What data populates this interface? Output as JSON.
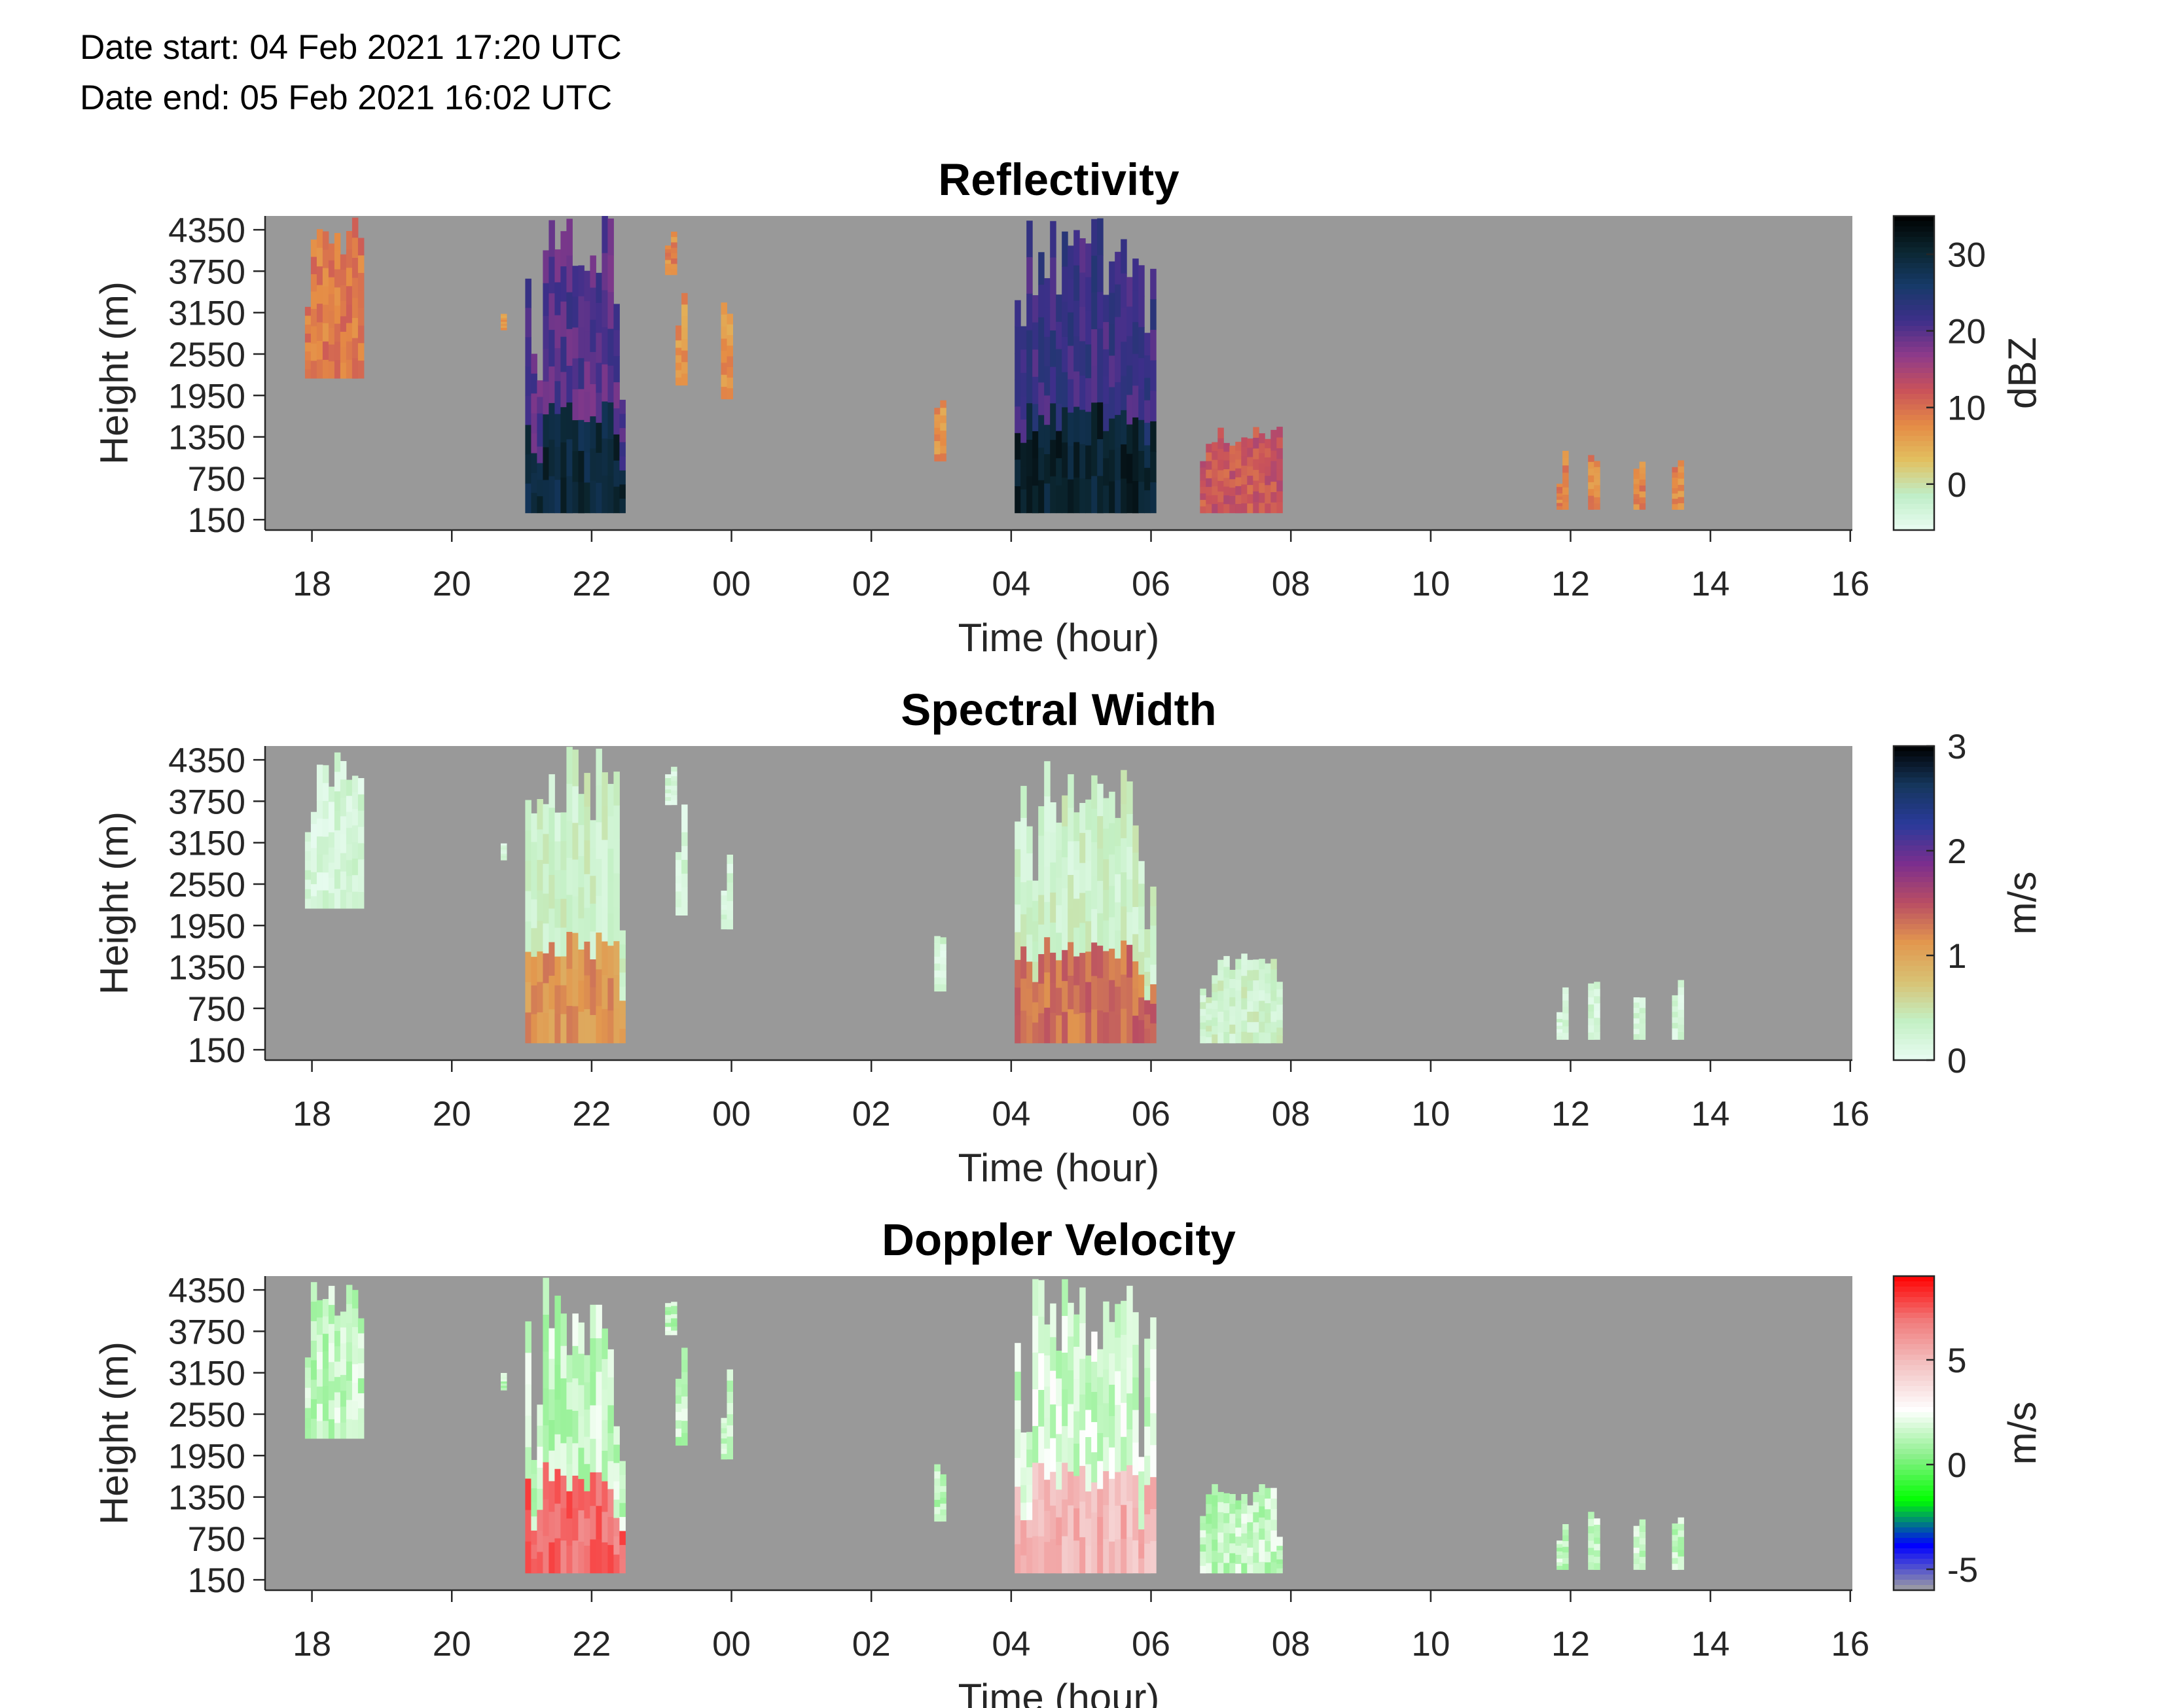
{
  "header": {
    "date_start": "Date start: 04 Feb 2021 17:20 UTC",
    "date_end": "Date end:  05 Feb 2021 16:02 UTC"
  },
  "colors": {
    "no_data": "#999999",
    "reflectivity_scale": [
      "#e9fcf2",
      "#bfeec7",
      "#e2c060",
      "#e58b45",
      "#c9525a",
      "#8e3a8a",
      "#3d2f8a",
      "#163a68",
      "#0b2630",
      "#000000"
    ],
    "width_scale": [
      "#e9fcf2",
      "#c3f0c4",
      "#d8c273",
      "#e2974e",
      "#b94d63",
      "#7b2e8e",
      "#2a3a9a",
      "#15365c",
      "#000000"
    ],
    "velocity_scale": [
      "#a0a0a0",
      "#0000ff",
      "#00ff00",
      "#8cf08c",
      "#ffffff",
      "#f3c4c4",
      "#f17b7b",
      "#ff0000"
    ]
  },
  "chart_data": [
    {
      "type": "heatmap",
      "title": "Reflectivity",
      "xlabel": "Time (hour)",
      "ylabel": "Height (m)",
      "xticks": [
        "18",
        "20",
        "22",
        "00",
        "02",
        "04",
        "06",
        "08",
        "10",
        "12",
        "14",
        "16"
      ],
      "yticks": [
        "4350",
        "3750",
        "3150",
        "2550",
        "1950",
        "1350",
        "750",
        "150"
      ],
      "xlim": [
        17.33,
        40.03
      ],
      "ylim": [
        0,
        4550
      ],
      "colorbar": {
        "label": "dBZ",
        "ticks": [
          "30",
          "20",
          "10",
          "0"
        ],
        "range": [
          -6,
          35
        ]
      },
      "echoes": [
        {
          "t": [
            17.9,
            18.7
          ],
          "h": [
            2200,
            4550
          ],
          "v": 9
        },
        {
          "t": [
            20.7,
            20.75
          ],
          "h": [
            2900,
            3150
          ],
          "v": 6
        },
        {
          "t": [
            21.05,
            22.45
          ],
          "h": [
            250,
            4550
          ],
          "v": 20,
          "core": 32
        },
        {
          "t": [
            23.05,
            23.2
          ],
          "h": [
            3700,
            4350
          ],
          "v": 8
        },
        {
          "t": [
            23.2,
            23.3
          ],
          "h": [
            2100,
            3800
          ],
          "v": 7
        },
        {
          "t": [
            23.85,
            23.95
          ],
          "h": [
            1900,
            3300
          ],
          "v": 7
        },
        {
          "t": [
            26.9,
            27.0
          ],
          "h": [
            1000,
            1900
          ],
          "v": 7
        },
        {
          "t": [
            28.05,
            30.05
          ],
          "h": [
            250,
            4550
          ],
          "v": 22,
          "core": 33
        },
        {
          "t": [
            30.7,
            31.8
          ],
          "h": [
            250,
            1550
          ],
          "v": 12
        },
        {
          "t": [
            35.8,
            35.9
          ],
          "h": [
            300,
            1150
          ],
          "v": 8
        },
        {
          "t": [
            36.25,
            36.35
          ],
          "h": [
            300,
            1150
          ],
          "v": 8
        },
        {
          "t": [
            36.9,
            37.05
          ],
          "h": [
            300,
            1050
          ],
          "v": 8
        },
        {
          "t": [
            37.45,
            37.55
          ],
          "h": [
            300,
            1250
          ],
          "v": 8
        }
      ]
    },
    {
      "type": "heatmap",
      "title": "Spectral Width",
      "xlabel": "Time (hour)",
      "ylabel": "Height (m)",
      "xticks": [
        "18",
        "20",
        "22",
        "00",
        "02",
        "04",
        "06",
        "08",
        "10",
        "12",
        "14",
        "16"
      ],
      "yticks": [
        "4350",
        "3750",
        "3150",
        "2550",
        "1950",
        "1350",
        "750",
        "150"
      ],
      "xlim": [
        17.33,
        40.03
      ],
      "ylim": [
        0,
        4550
      ],
      "colorbar": {
        "label": "m/s",
        "ticks": [
          "3",
          "2",
          "1",
          "0"
        ],
        "range": [
          0,
          3
        ]
      },
      "echoes": [
        {
          "t": [
            17.9,
            18.7
          ],
          "h": [
            2200,
            4550
          ],
          "v": 0.2
        },
        {
          "t": [
            20.7,
            20.75
          ],
          "h": [
            2900,
            3150
          ],
          "v": 0.2
        },
        {
          "t": [
            21.05,
            22.45
          ],
          "h": [
            250,
            4550
          ],
          "v": 0.3,
          "core": 1.3
        },
        {
          "t": [
            23.05,
            23.2
          ],
          "h": [
            3700,
            4350
          ],
          "v": 0.2
        },
        {
          "t": [
            23.2,
            23.3
          ],
          "h": [
            2100,
            3800
          ],
          "v": 0.2
        },
        {
          "t": [
            23.85,
            23.95
          ],
          "h": [
            1900,
            3300
          ],
          "v": 0.2
        },
        {
          "t": [
            26.9,
            27.0
          ],
          "h": [
            1000,
            1900
          ],
          "v": 0.2
        },
        {
          "t": [
            28.05,
            30.05
          ],
          "h": [
            250,
            4550
          ],
          "v": 0.3,
          "core": 1.5
        },
        {
          "t": [
            30.7,
            31.8
          ],
          "h": [
            250,
            1550
          ],
          "v": 0.3
        },
        {
          "t": [
            35.8,
            35.9
          ],
          "h": [
            300,
            1150
          ],
          "v": 0.2
        },
        {
          "t": [
            36.25,
            36.35
          ],
          "h": [
            300,
            1150
          ],
          "v": 0.2
        },
        {
          "t": [
            36.9,
            37.05
          ],
          "h": [
            300,
            1050
          ],
          "v": 0.2
        },
        {
          "t": [
            37.45,
            37.55
          ],
          "h": [
            300,
            1250
          ],
          "v": 0.2
        }
      ]
    },
    {
      "type": "heatmap",
      "title": "Doppler Velocity",
      "xlabel": "Time (hour)",
      "ylabel": "Height (m)",
      "xticks": [
        "18",
        "20",
        "22",
        "00",
        "02",
        "04",
        "06",
        "08",
        "10",
        "12",
        "14",
        "16"
      ],
      "yticks": [
        "4350",
        "3750",
        "3150",
        "2550",
        "1950",
        "1350",
        "750",
        "150"
      ],
      "xlim": [
        17.33,
        40.03
      ],
      "ylim": [
        0,
        4550
      ],
      "colorbar": {
        "label": "m/s",
        "ticks": [
          "5",
          "0",
          "-5"
        ],
        "range": [
          -6,
          9
        ]
      },
      "echoes": [
        {
          "t": [
            17.9,
            18.7
          ],
          "h": [
            2200,
            4550
          ],
          "v": 1.5
        },
        {
          "t": [
            20.7,
            20.75
          ],
          "h": [
            2900,
            3150
          ],
          "v": 1.5
        },
        {
          "t": [
            21.05,
            22.45
          ],
          "h": [
            250,
            4550
          ],
          "v": 1.5,
          "core": 8
        },
        {
          "t": [
            23.05,
            23.2
          ],
          "h": [
            3700,
            4350
          ],
          "v": 1.5
        },
        {
          "t": [
            23.2,
            23.3
          ],
          "h": [
            2100,
            3800
          ],
          "v": 1.5
        },
        {
          "t": [
            23.85,
            23.95
          ],
          "h": [
            1900,
            3300
          ],
          "v": 1.5
        },
        {
          "t": [
            26.9,
            27.0
          ],
          "h": [
            1000,
            1900
          ],
          "v": 1.5
        },
        {
          "t": [
            28.05,
            30.05
          ],
          "h": [
            250,
            4550
          ],
          "v": 1.8,
          "core": 6
        },
        {
          "t": [
            30.7,
            31.8
          ],
          "h": [
            250,
            1550
          ],
          "v": 1.5
        },
        {
          "t": [
            35.8,
            35.9
          ],
          "h": [
            300,
            1150
          ],
          "v": 1.5
        },
        {
          "t": [
            36.25,
            36.35
          ],
          "h": [
            300,
            1150
          ],
          "v": 1.5
        },
        {
          "t": [
            36.9,
            37.05
          ],
          "h": [
            300,
            1050
          ],
          "v": 1.5
        },
        {
          "t": [
            37.45,
            37.55
          ],
          "h": [
            300,
            1250
          ],
          "v": 1.5
        }
      ]
    }
  ]
}
